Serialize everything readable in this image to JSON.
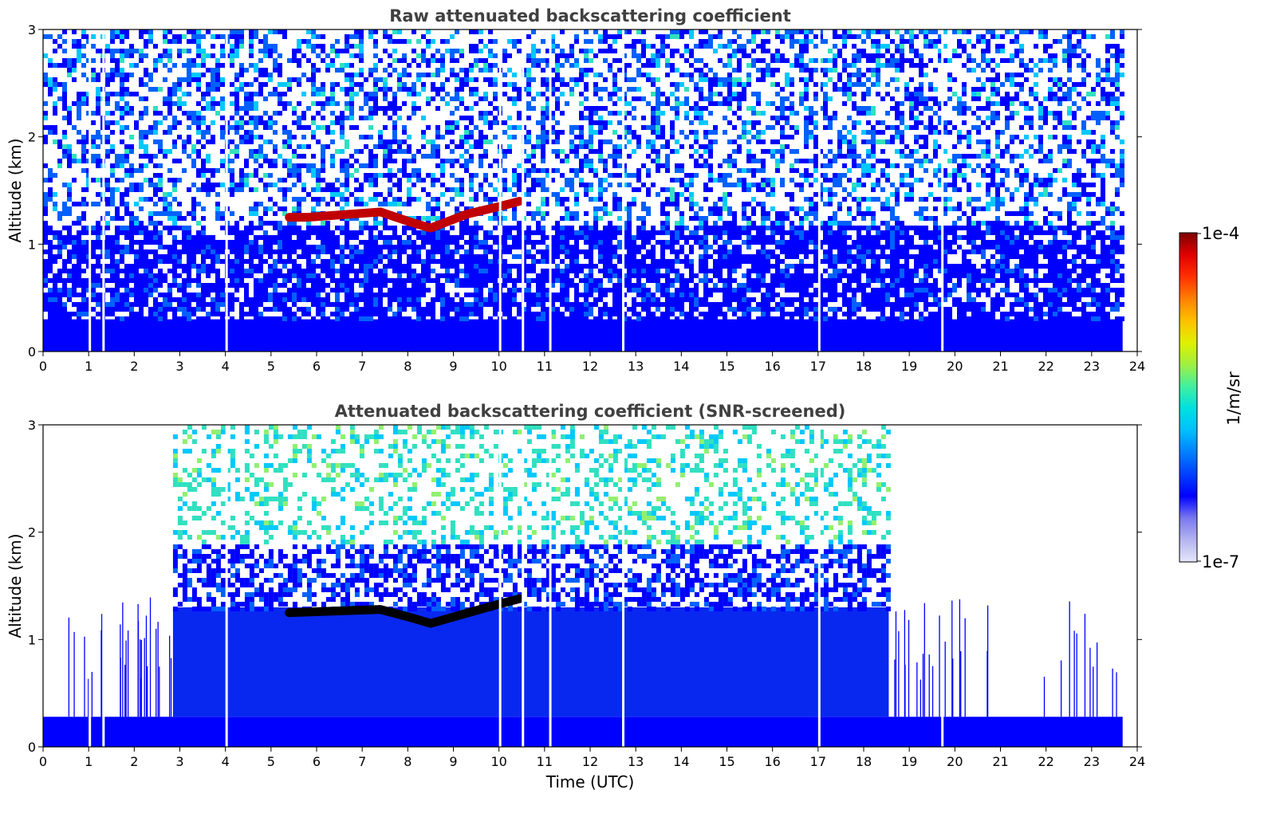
{
  "chart_data": [
    {
      "type": "heatmap",
      "title": "Raw attenuated backscattering coefficient",
      "xlabel": "",
      "ylabel": "Altitude (km)",
      "xlim": [
        0,
        24
      ],
      "ylim": [
        0,
        3
      ],
      "xticks": [
        0,
        1,
        2,
        3,
        4,
        5,
        6,
        7,
        8,
        9,
        10,
        11,
        12,
        13,
        14,
        15,
        16,
        17,
        18,
        19,
        20,
        21,
        22,
        23,
        24
      ],
      "yticks": [
        0,
        1,
        2,
        3
      ],
      "data_end_time": 23.68,
      "bands": [
        {
          "alt_from": 0,
          "alt_to": 0.3,
          "level": "dense blue"
        },
        {
          "alt_from": 0.3,
          "alt_to": 1.2,
          "level": "blue with white noise"
        },
        {
          "alt_from": 1.2,
          "alt_to": 3,
          "level": "sparse blue/cyan noise"
        }
      ],
      "cloud_layer": [
        {
          "time": 5.4,
          "alt": 1.25
        },
        {
          "time": 5.8,
          "alt": 1.25
        },
        {
          "time": 7.4,
          "alt": 1.3
        },
        {
          "time": 8.1,
          "alt": 1.2
        },
        {
          "time": 8.5,
          "alt": 1.15
        },
        {
          "time": 9.3,
          "alt": 1.28
        },
        {
          "time": 10.0,
          "alt": 1.35
        },
        {
          "time": 10.45,
          "alt": 1.4
        }
      ],
      "gap_times": [
        1.0,
        1.3,
        4.0,
        10.0,
        10.5,
        11.1,
        12.7,
        17.0,
        19.7
      ]
    },
    {
      "type": "heatmap",
      "title": "Attenuated backscattering coefficient (SNR-screened)",
      "xlabel": "Time (UTC)",
      "ylabel": "Altitude (km)",
      "xlim": [
        0,
        24
      ],
      "ylim": [
        0,
        3
      ],
      "xticks": [
        0,
        1,
        2,
        3,
        4,
        5,
        6,
        7,
        8,
        9,
        10,
        11,
        12,
        13,
        14,
        15,
        16,
        17,
        18,
        19,
        20,
        21,
        22,
        23,
        24
      ],
      "yticks": [
        0,
        1,
        2,
        3
      ],
      "data_end_time": 23.68,
      "screened_top": [
        {
          "time": 0,
          "alt": 0.28
        },
        {
          "time": 2.85,
          "alt": 0.28
        },
        {
          "time": 2.85,
          "alt": 3.0
        },
        {
          "time": 18.4,
          "alt": 3.0
        },
        {
          "time": 18.55,
          "alt": 0.28
        },
        {
          "time": 23.68,
          "alt": 0.28
        }
      ],
      "cloud_layer": [
        {
          "time": 5.4,
          "alt": 1.25
        },
        {
          "time": 7.4,
          "alt": 1.28
        },
        {
          "time": 8.1,
          "alt": 1.2
        },
        {
          "time": 8.5,
          "alt": 1.15
        },
        {
          "time": 10.0,
          "alt": 1.33
        },
        {
          "time": 10.45,
          "alt": 1.38
        }
      ],
      "gap_times": [
        1.0,
        1.3,
        4.0,
        10.0,
        10.5,
        11.1,
        12.7,
        17.0,
        19.7
      ]
    }
  ],
  "colorbar": {
    "label": "1/m/sr",
    "min_label": "1e-7",
    "max_label": "1e-4",
    "colors": [
      "#e6e6fa",
      "#b4b4f0",
      "#7878f0",
      "#0000ff",
      "#0040ff",
      "#0080ff",
      "#00c0ff",
      "#00e0e0",
      "#40f0a0",
      "#a0f040",
      "#e0f000",
      "#ffc000",
      "#ff8000",
      "#ff3000",
      "#e00000",
      "#800000"
    ]
  }
}
